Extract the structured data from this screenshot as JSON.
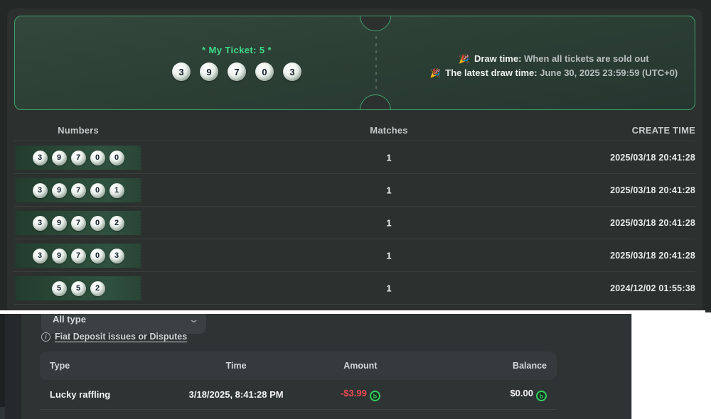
{
  "ticket": {
    "title": "* My Ticket: 5 *",
    "numbers": [
      "3",
      "9",
      "7",
      "0",
      "3"
    ],
    "emoji": "🎉",
    "draw_time_label": "Draw time:",
    "draw_time_value": "When all tickets are sold out",
    "latest_draw_label": "The latest draw time:",
    "latest_draw_value": "June 30, 2025 23:59:59 (UTC+0)"
  },
  "history_table": {
    "columns": {
      "numbers": "Numbers",
      "matches": "Matches",
      "create_time": "CREATE TIME"
    },
    "rows": [
      {
        "numbers": [
          "3",
          "9",
          "7",
          "0",
          "0"
        ],
        "matches": "1",
        "create_time": "2025/03/18 20:41:28"
      },
      {
        "numbers": [
          "3",
          "9",
          "7",
          "0",
          "1"
        ],
        "matches": "1",
        "create_time": "2025/03/18 20:41:28"
      },
      {
        "numbers": [
          "3",
          "9",
          "7",
          "0",
          "2"
        ],
        "matches": "1",
        "create_time": "2025/03/18 20:41:28"
      },
      {
        "numbers": [
          "3",
          "9",
          "7",
          "0",
          "3"
        ],
        "matches": "1",
        "create_time": "2025/03/18 20:41:28"
      },
      {
        "numbers": [
          "5",
          "5",
          "2"
        ],
        "matches": "1",
        "create_time": "2024/12/02 01:55:38"
      }
    ]
  },
  "transactions": {
    "filter_value": "All type",
    "chevron": "⌄",
    "info_glyph": "i",
    "dispute_link": "Fiat Deposit issues or Disputes",
    "columns": {
      "type": "Type",
      "time": "Time",
      "amount": "Amount",
      "balance": "Balance"
    },
    "rows": [
      {
        "type": "Lucky raffling",
        "time": "3/18/2025, 8:41:28 PM",
        "amount": "-$3.99",
        "balance": "$0.00",
        "coin_glyph": "b"
      }
    ]
  },
  "colors": {
    "accent_green": "#3fdc89",
    "ticket_border": "#3fa26d",
    "negative_red": "#ef4b52",
    "coin_green": "#2fd35d"
  }
}
